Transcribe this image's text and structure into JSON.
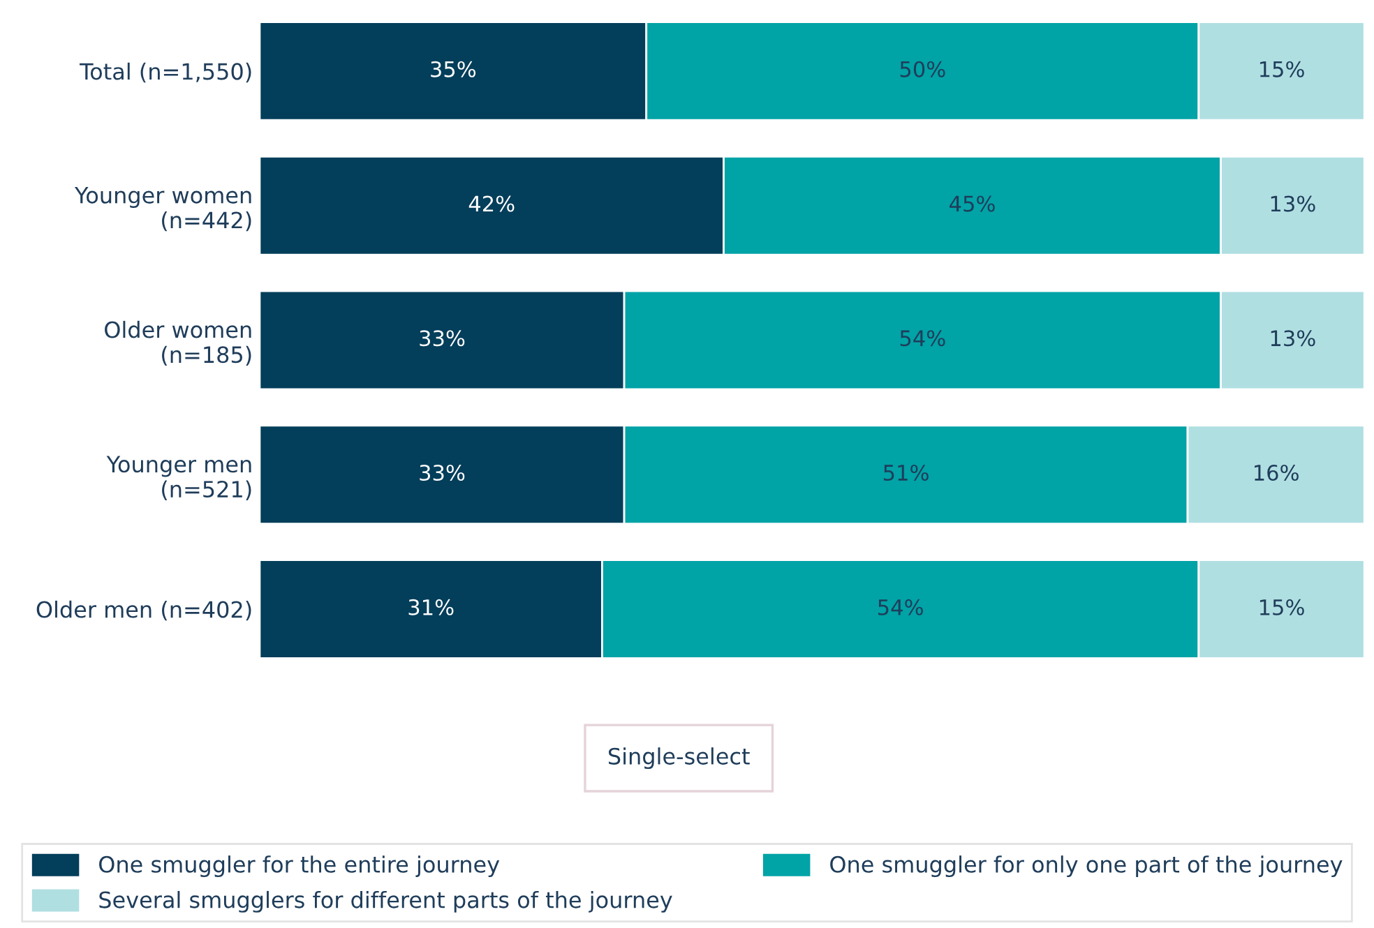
{
  "chart_data": {
    "type": "bar",
    "orientation": "horizontal",
    "stacked": true,
    "legend": "bottom",
    "grid": false,
    "categories": [
      "Total (n=1,550)",
      "Younger women\n(n=442)",
      "Older women\n(n=185)",
      "Younger men\n(n=521)",
      "Older men (n=402)"
    ],
    "series": [
      {
        "name": "One smuggler for the entire journey",
        "color": "#033e5a",
        "values": [
          35,
          42,
          33,
          33,
          31
        ],
        "value_labels": [
          "35%",
          "42%",
          "33%",
          "33%",
          "31%"
        ]
      },
      {
        "name": "One smuggler for only one part of the journey",
        "color": "#00a3a6",
        "values": [
          50,
          45,
          54,
          51,
          54
        ],
        "value_labels": [
          "50%",
          "45%",
          "54%",
          "51%",
          "54%"
        ]
      },
      {
        "name": "Several smugglers for different parts of the journey",
        "color": "#b0dfe2",
        "values": [
          15,
          13,
          13,
          16,
          15
        ],
        "value_labels": [
          "15%",
          "13%",
          "13%",
          "16%",
          "15%"
        ]
      }
    ],
    "annotations": [
      "Single-select"
    ]
  }
}
